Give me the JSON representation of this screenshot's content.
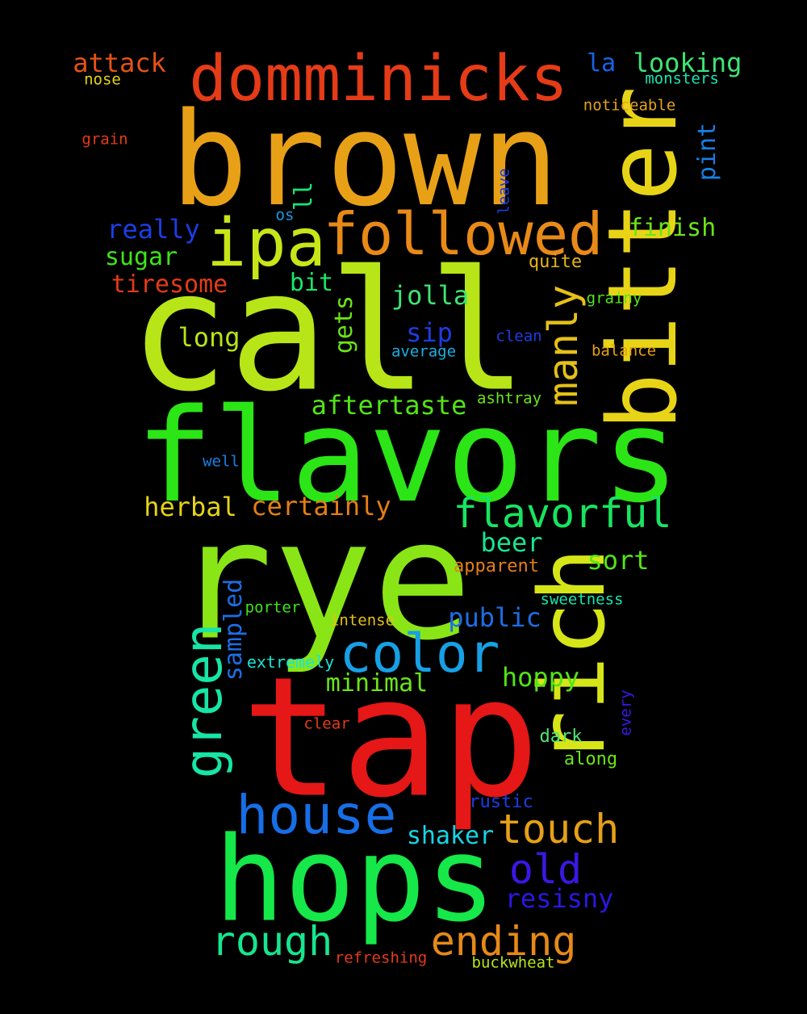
{
  "words": [
    {
      "text": "brown",
      "color": "#e8a117"
    },
    {
      "text": "call",
      "color": "#b7e517"
    },
    {
      "text": "flavors",
      "color": "#2be516"
    },
    {
      "text": "rye",
      "color": "#8ae517"
    },
    {
      "text": "tap",
      "color": "#e51717"
    },
    {
      "text": "hops",
      "color": "#15e848"
    },
    {
      "text": "rich",
      "color": "#d6e517"
    },
    {
      "text": "bitter",
      "color": "#e8d417"
    },
    {
      "text": "domminicks",
      "color": "#e53b17"
    },
    {
      "text": "ipa",
      "color": "#c8e517"
    },
    {
      "text": "followed",
      "color": "#e88a17"
    },
    {
      "text": "color",
      "color": "#17a0e5"
    },
    {
      "text": "house",
      "color": "#176ee5"
    },
    {
      "text": "green",
      "color": "#17e5a6"
    },
    {
      "text": "flavorful",
      "color": "#17e560"
    },
    {
      "text": "touch",
      "color": "#e5a017"
    },
    {
      "text": "old",
      "color": "#3b17e5"
    },
    {
      "text": "ending",
      "color": "#e58a17"
    },
    {
      "text": "rough",
      "color": "#17e58f"
    },
    {
      "text": "manly",
      "color": "#e5c017"
    },
    {
      "text": "resisny",
      "color": "#2b17e5"
    },
    {
      "text": "really",
      "color": "#1d3de5"
    },
    {
      "text": "attack",
      "color": "#e55217"
    },
    {
      "text": "looking",
      "color": "#3de574"
    },
    {
      "text": "la",
      "color": "#1763e5"
    },
    {
      "text": "nose",
      "color": "#e5d417"
    },
    {
      "text": "monsters",
      "color": "#17e5b0"
    },
    {
      "text": "noticeable",
      "color": "#e5a317"
    },
    {
      "text": "grain",
      "color": "#e53b17"
    },
    {
      "text": "pint",
      "color": "#1780e5"
    },
    {
      "text": "finish",
      "color": "#6be517"
    },
    {
      "text": "ll",
      "color": "#17e573"
    },
    {
      "text": "os",
      "color": "#179be5"
    },
    {
      "text": "leave",
      "color": "#1d3de5"
    },
    {
      "text": "sugar",
      "color": "#3de517"
    },
    {
      "text": "quite",
      "color": "#e5b417"
    },
    {
      "text": "tiresome",
      "color": "#e53b17"
    },
    {
      "text": "bit",
      "color": "#17e56b"
    },
    {
      "text": "jolla",
      "color": "#3de574"
    },
    {
      "text": "grainy",
      "color": "#52e517"
    },
    {
      "text": "gets",
      "color": "#6be517"
    },
    {
      "text": "long",
      "color": "#b7e517"
    },
    {
      "text": "sip",
      "color": "#1d3de5"
    },
    {
      "text": "clean",
      "color": "#1d3de5"
    },
    {
      "text": "average",
      "color": "#17b0e5"
    },
    {
      "text": "balance",
      "color": "#e5a017"
    },
    {
      "text": "aftertaste",
      "color": "#52e517"
    },
    {
      "text": "ashtray",
      "color": "#6be517"
    },
    {
      "text": "well",
      "color": "#1780e5"
    },
    {
      "text": "herbal",
      "color": "#e5d417"
    },
    {
      "text": "certainly",
      "color": "#e57e17"
    },
    {
      "text": "beer",
      "color": "#17e58f"
    },
    {
      "text": "sort",
      "color": "#52e517"
    },
    {
      "text": "apparent",
      "color": "#e57e17"
    },
    {
      "text": "sampled",
      "color": "#1d6ee5"
    },
    {
      "text": "porter",
      "color": "#3de517"
    },
    {
      "text": "sweetness",
      "color": "#17e5b0"
    },
    {
      "text": "public",
      "color": "#1d6ee5"
    },
    {
      "text": "intense",
      "color": "#e5c017"
    },
    {
      "text": "extremely",
      "color": "#17e5d4"
    },
    {
      "text": "minimal",
      "color": "#6be517"
    },
    {
      "text": "hoppy",
      "color": "#52e517"
    },
    {
      "text": "clear",
      "color": "#e53b17"
    },
    {
      "text": "every",
      "color": "#3b17e5"
    },
    {
      "text": "dark",
      "color": "#52e574"
    },
    {
      "text": "along",
      "color": "#6be517"
    },
    {
      "text": "rustic",
      "color": "#1d3de5"
    },
    {
      "text": "shaker",
      "color": "#17d4e5"
    },
    {
      "text": "refreshing",
      "color": "#e53b17"
    },
    {
      "text": "buckwheat",
      "color": "#b7e517"
    }
  ]
}
